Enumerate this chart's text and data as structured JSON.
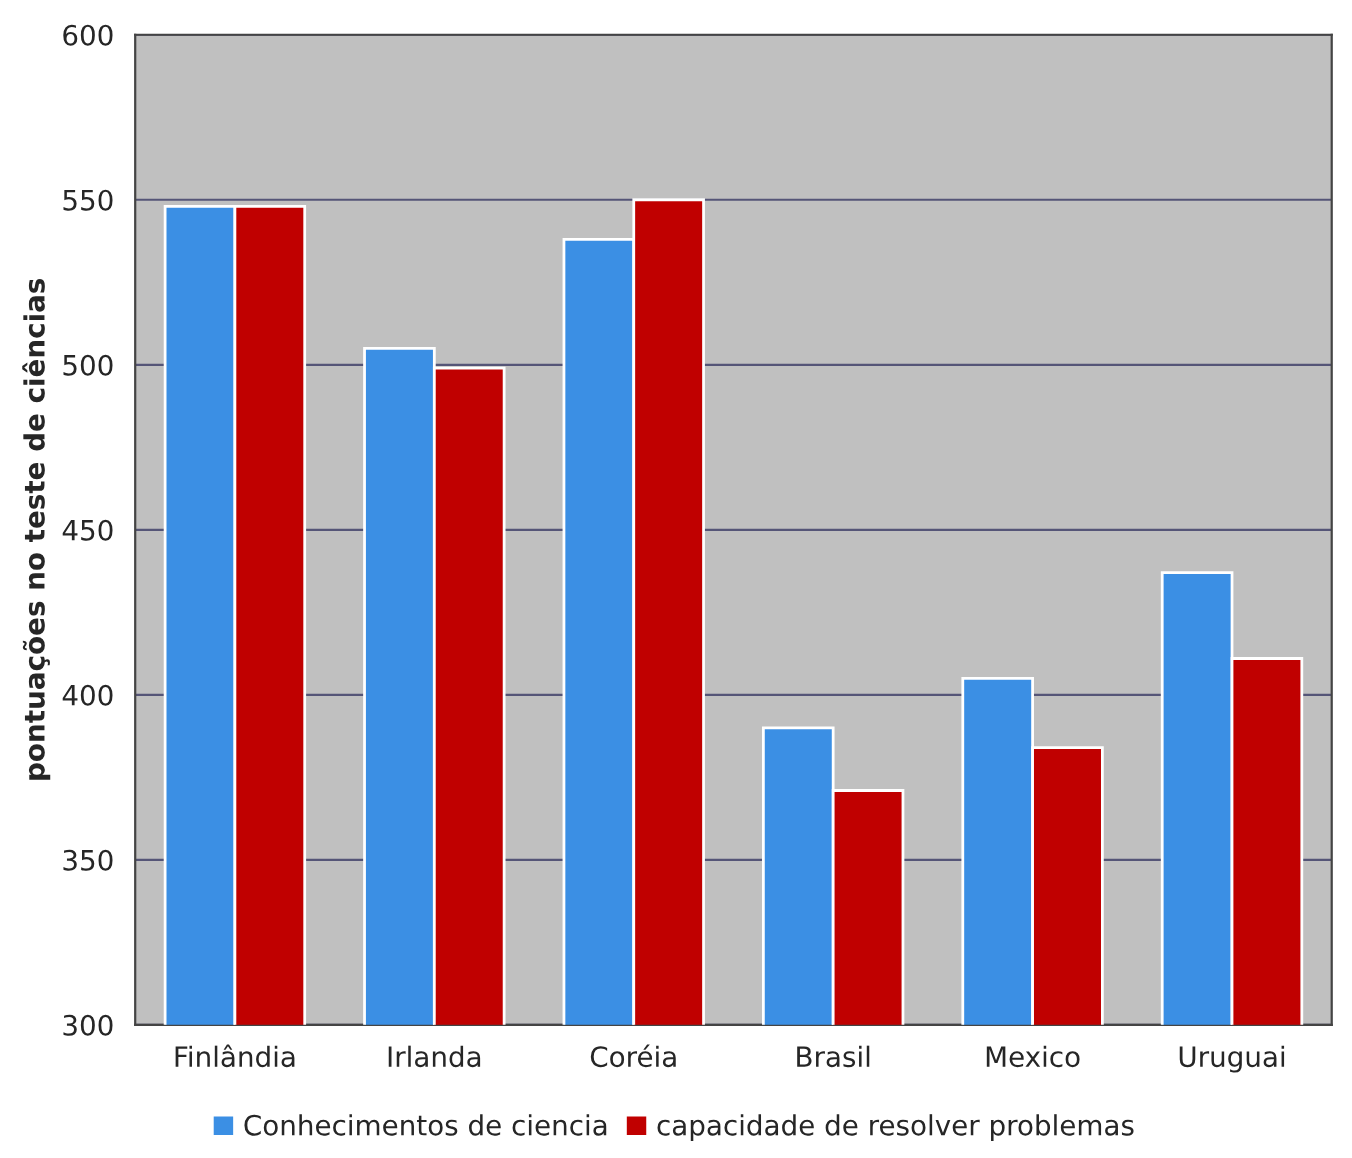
{
  "chart_data": {
    "type": "bar",
    "ylabel": "pontuações no teste de ciências",
    "categories": [
      "Finlândia",
      "Irlanda",
      "Coréia",
      "Brasil",
      "Mexico",
      "Uruguai"
    ],
    "series": [
      {
        "name": "Conhecimentos de ciencia",
        "color": "#3b8fe4",
        "values": [
          548,
          505,
          538,
          390,
          405,
          437
        ]
      },
      {
        "name": "capacidade de resolver problemas",
        "color": "#c00000",
        "values": [
          548,
          499,
          550,
          371,
          384,
          411
        ]
      }
    ],
    "ylim": [
      300,
      600
    ],
    "yticks": [
      300,
      350,
      400,
      450,
      500,
      550,
      600
    ],
    "grid": "y",
    "legend": "bottom"
  }
}
